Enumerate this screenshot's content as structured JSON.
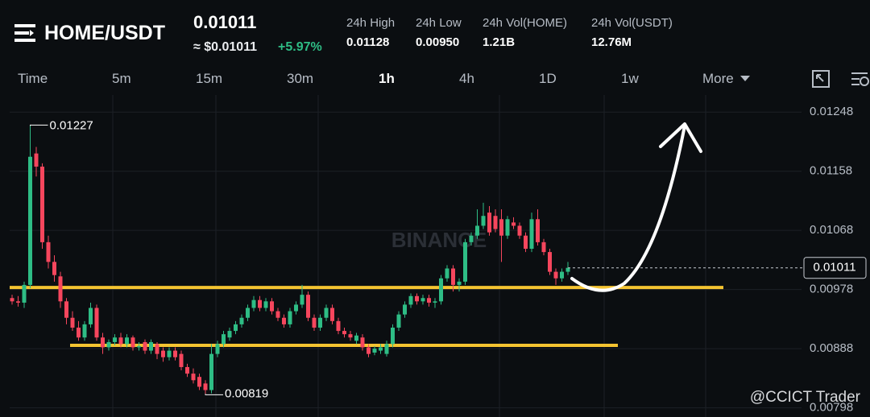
{
  "header": {
    "pair": "HOME/USDT",
    "price": "0.01011",
    "approx": "≈ $0.01011",
    "change": "+5.97%",
    "stats": [
      {
        "label": "24h High",
        "value": "0.01128"
      },
      {
        "label": "24h Low",
        "value": "0.00950"
      },
      {
        "label": "24h Vol(HOME)",
        "value": "1.21B"
      },
      {
        "label": "24h Vol(USDT)",
        "value": "12.76M"
      }
    ]
  },
  "intervals": [
    "Time",
    "5m",
    "15m",
    "30m",
    "1h",
    "4h",
    "1D",
    "1w",
    "More"
  ],
  "watermark": "BINANCE",
  "credit": "@CCICT Trader",
  "chart_data": {
    "type": "candlestick",
    "ylim": [
      0.00784,
      0.01274
    ],
    "yticks": [
      0.01248,
      0.01158,
      0.01068,
      0.00978,
      0.00888,
      0.00798
    ],
    "grid": true,
    "up_color": "#2ebd85",
    "down_color": "#f6465d",
    "level_color": "#f5c431",
    "high_label": 0.01227,
    "low_label": 0.00819,
    "last_price": 0.01011,
    "levels": [
      0.00981,
      0.00893
    ],
    "candles": [
      [
        0.00965,
        0.0097,
        0.00955,
        0.0096
      ],
      [
        0.0096,
        0.00968,
        0.00952,
        0.00958
      ],
      [
        0.00958,
        0.0099,
        0.0095,
        0.00985
      ],
      [
        0.00985,
        0.01227,
        0.0098,
        0.0118
      ],
      [
        0.01185,
        0.01195,
        0.0115,
        0.01165
      ],
      [
        0.01165,
        0.0117,
        0.0104,
        0.0105
      ],
      [
        0.0105,
        0.0106,
        0.0101,
        0.0102
      ],
      [
        0.0102,
        0.0103,
        0.0099,
        0.01
      ],
      [
        0.00998,
        0.01005,
        0.0095,
        0.0096
      ],
      [
        0.0096,
        0.00965,
        0.00925,
        0.00935
      ],
      [
        0.00935,
        0.00945,
        0.00915,
        0.0092
      ],
      [
        0.0092,
        0.0093,
        0.009,
        0.00905
      ],
      [
        0.00905,
        0.0093,
        0.009,
        0.00925
      ],
      [
        0.00925,
        0.00958,
        0.0092,
        0.0095
      ],
      [
        0.0095,
        0.00955,
        0.009,
        0.00905
      ],
      [
        0.00905,
        0.00912,
        0.0088,
        0.0089
      ],
      [
        0.0089,
        0.00902,
        0.00885,
        0.00898
      ],
      [
        0.00898,
        0.0091,
        0.00893,
        0.00905
      ],
      [
        0.00905,
        0.00912,
        0.0089,
        0.00895
      ],
      [
        0.00895,
        0.0091,
        0.0089,
        0.00905
      ],
      [
        0.00905,
        0.00908,
        0.00885,
        0.0089
      ],
      [
        0.0089,
        0.00898,
        0.00885,
        0.00892
      ],
      [
        0.00898,
        0.00902,
        0.0088,
        0.00885
      ],
      [
        0.00885,
        0.00902,
        0.0088,
        0.00898
      ],
      [
        0.00895,
        0.00898,
        0.00872,
        0.0088
      ],
      [
        0.00885,
        0.0089,
        0.00868,
        0.00875
      ],
      [
        0.00875,
        0.0089,
        0.0087,
        0.00885
      ],
      [
        0.00885,
        0.0089,
        0.0087,
        0.00875
      ],
      [
        0.0088,
        0.00885,
        0.00855,
        0.0086
      ],
      [
        0.0086,
        0.00865,
        0.00845,
        0.0085
      ],
      [
        0.0085,
        0.00858,
        0.00835,
        0.0084
      ],
      [
        0.00845,
        0.0085,
        0.00825,
        0.0083
      ],
      [
        0.00835,
        0.0084,
        0.00819,
        0.00825
      ],
      [
        0.00825,
        0.00895,
        0.0082,
        0.0088
      ],
      [
        0.0088,
        0.009,
        0.00875,
        0.00895
      ],
      [
        0.00895,
        0.00915,
        0.0089,
        0.0091
      ],
      [
        0.00905,
        0.0092,
        0.009,
        0.00915
      ],
      [
        0.00915,
        0.0093,
        0.0091,
        0.00925
      ],
      [
        0.00925,
        0.0094,
        0.0092,
        0.00935
      ],
      [
        0.00935,
        0.00955,
        0.0093,
        0.0095
      ],
      [
        0.0095,
        0.00968,
        0.00945,
        0.00962
      ],
      [
        0.00962,
        0.00968,
        0.00945,
        0.0095
      ],
      [
        0.0095,
        0.00965,
        0.00945,
        0.0096
      ],
      [
        0.0096,
        0.00965,
        0.0094,
        0.00945
      ],
      [
        0.00945,
        0.0095,
        0.0093,
        0.00935
      ],
      [
        0.00935,
        0.0094,
        0.0092,
        0.00925
      ],
      [
        0.00925,
        0.0095,
        0.0092,
        0.00945
      ],
      [
        0.00945,
        0.0096,
        0.0094,
        0.00955
      ],
      [
        0.00955,
        0.00985,
        0.0095,
        0.0097
      ],
      [
        0.0097,
        0.00975,
        0.0093,
        0.00935
      ],
      [
        0.00935,
        0.0094,
        0.00915,
        0.0092
      ],
      [
        0.0092,
        0.0094,
        0.00915,
        0.00935
      ],
      [
        0.00935,
        0.00955,
        0.0093,
        0.0095
      ],
      [
        0.0095,
        0.00955,
        0.00925,
        0.0093
      ],
      [
        0.0093,
        0.00935,
        0.0091,
        0.00915
      ],
      [
        0.00915,
        0.0092,
        0.00905,
        0.0091
      ],
      [
        0.0091,
        0.00915,
        0.009,
        0.00905
      ],
      [
        0.009,
        0.00912,
        0.00895,
        0.00908
      ],
      [
        0.00905,
        0.0091,
        0.00885,
        0.0089
      ],
      [
        0.0089,
        0.00895,
        0.00875,
        0.0088
      ],
      [
        0.00882,
        0.00892,
        0.00878,
        0.00888
      ],
      [
        0.00885,
        0.00895,
        0.0088,
        0.0089
      ],
      [
        0.0088,
        0.009,
        0.00876,
        0.00895
      ],
      [
        0.00895,
        0.00925,
        0.0089,
        0.0092
      ],
      [
        0.0092,
        0.00945,
        0.00915,
        0.0094
      ],
      [
        0.0094,
        0.0096,
        0.00935,
        0.00955
      ],
      [
        0.00955,
        0.00972,
        0.0095,
        0.00968
      ],
      [
        0.00968,
        0.00972,
        0.00955,
        0.0096
      ],
      [
        0.0096,
        0.0097,
        0.00955,
        0.00965
      ],
      [
        0.00965,
        0.0097,
        0.00952,
        0.00958
      ],
      [
        0.00958,
        0.00965,
        0.0095,
        0.0096
      ],
      [
        0.0096,
        0.01,
        0.00955,
        0.00995
      ],
      [
        0.00995,
        0.01015,
        0.0099,
        0.0101
      ],
      [
        0.0101,
        0.01015,
        0.00975,
        0.00985
      ],
      [
        0.00985,
        0.00995,
        0.00975,
        0.0099
      ],
      [
        0.0099,
        0.01055,
        0.00985,
        0.0105
      ],
      [
        0.0105,
        0.01065,
        0.01045,
        0.0106
      ],
      [
        0.0106,
        0.011,
        0.01055,
        0.01075
      ],
      [
        0.01075,
        0.0111,
        0.0107,
        0.0109
      ],
      [
        0.01095,
        0.01105,
        0.0106,
        0.01065
      ],
      [
        0.0109,
        0.011,
        0.01065,
        0.0107
      ],
      [
        0.01085,
        0.011,
        0.0102,
        0.0106
      ],
      [
        0.0106,
        0.0109,
        0.01055,
        0.01085
      ],
      [
        0.0108,
        0.01088,
        0.0107,
        0.01075
      ],
      [
        0.01075,
        0.0108,
        0.01055,
        0.0106
      ],
      [
        0.0106,
        0.01065,
        0.01035,
        0.0104
      ],
      [
        0.0104,
        0.01095,
        0.01035,
        0.01085
      ],
      [
        0.01085,
        0.011,
        0.01045,
        0.0105
      ],
      [
        0.0105,
        0.01055,
        0.0103,
        0.01035
      ],
      [
        0.01035,
        0.0104,
        0.01,
        0.01005
      ],
      [
        0.01005,
        0.0101,
        0.00985,
        0.00995
      ],
      [
        0.00995,
        0.0101,
        0.0099,
        0.01005
      ],
      [
        0.01005,
        0.0102,
        0.01,
        0.01011
      ]
    ]
  }
}
